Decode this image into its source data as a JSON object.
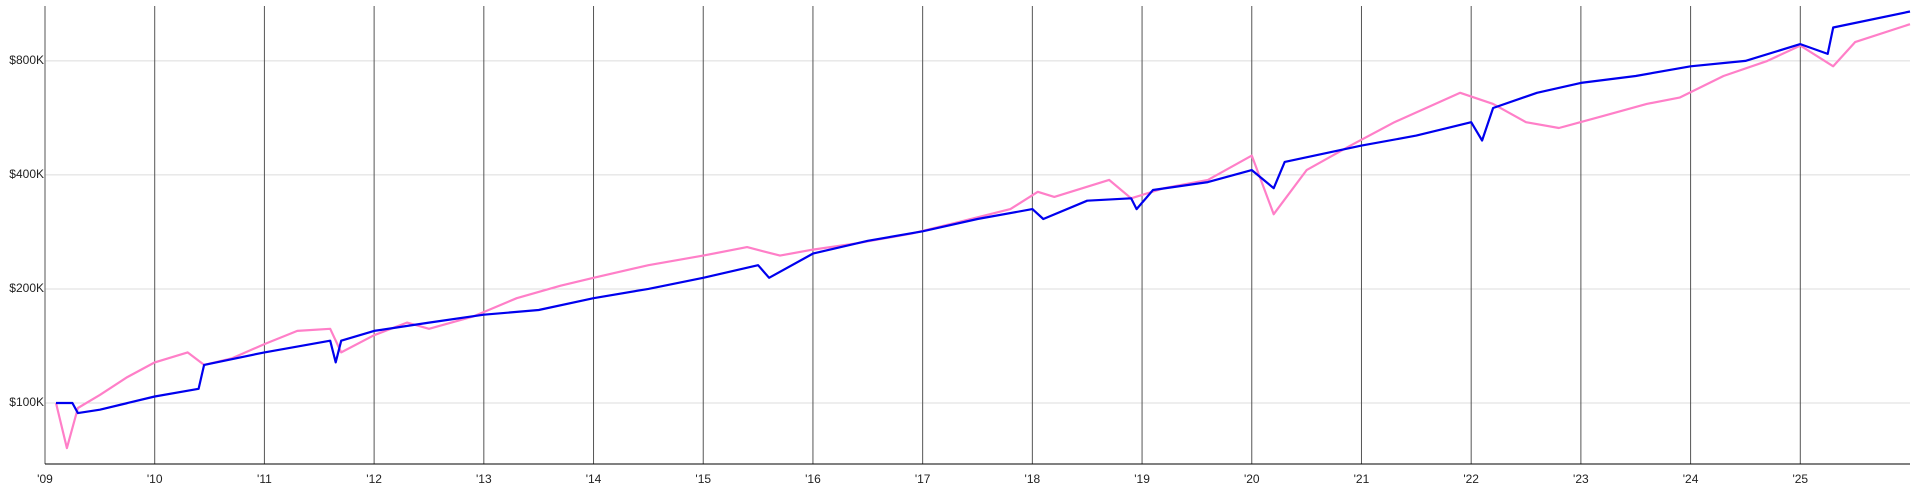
{
  "chart_data": {
    "type": "line",
    "yscale": "log",
    "xlim": [
      2009,
      2026
    ],
    "ylim": [
      69000,
      1117000
    ],
    "xticks": [
      {
        "value": 2009,
        "label": "'09"
      },
      {
        "value": 2010,
        "label": "'10"
      },
      {
        "value": 2011,
        "label": "'11"
      },
      {
        "value": 2012,
        "label": "'12"
      },
      {
        "value": 2013,
        "label": "'13"
      },
      {
        "value": 2014,
        "label": "'14"
      },
      {
        "value": 2015,
        "label": "'15"
      },
      {
        "value": 2016,
        "label": "'16"
      },
      {
        "value": 2017,
        "label": "'17"
      },
      {
        "value": 2018,
        "label": "'18"
      },
      {
        "value": 2019,
        "label": "'19"
      },
      {
        "value": 2020,
        "label": "'20"
      },
      {
        "value": 2021,
        "label": "'21"
      },
      {
        "value": 2022,
        "label": "'22"
      },
      {
        "value": 2023,
        "label": "'23"
      },
      {
        "value": 2024,
        "label": "'24"
      },
      {
        "value": 2025,
        "label": "'25"
      }
    ],
    "yticks": [
      {
        "value": 100000,
        "label": "$100K"
      },
      {
        "value": 200000,
        "label": "$200K"
      },
      {
        "value": 400000,
        "label": "$400K"
      },
      {
        "value": 800000,
        "label": "$800K"
      }
    ],
    "grid": true,
    "series": [
      {
        "color": "#ff7fc8",
        "x": [
          2009.1,
          2009.2,
          2009.3,
          2009.5,
          2009.75,
          2010.0,
          2010.3,
          2010.45,
          2010.7,
          2011.0,
          2011.3,
          2011.6,
          2011.7,
          2012.0,
          2012.3,
          2012.5,
          2012.9,
          2013.3,
          2013.7,
          2014.0,
          2014.5,
          2015.0,
          2015.4,
          2015.7,
          2016.0,
          2016.4,
          2016.9,
          2017.3,
          2017.8,
          2018.05,
          2018.2,
          2018.7,
          2018.9,
          2019.2,
          2019.6,
          2020.0,
          2020.2,
          2020.5,
          2020.9,
          2021.3,
          2021.9,
          2022.2,
          2022.5,
          2022.8,
          2023.2,
          2023.6,
          2023.9,
          2024.3,
          2024.7,
          2025.0,
          2025.3,
          2025.5,
          2026.0
        ],
        "values": [
          100000,
          76000,
          97000,
          105000,
          117000,
          128000,
          136000,
          126000,
          131000,
          143000,
          155000,
          157000,
          136000,
          151000,
          163000,
          157000,
          169000,
          189000,
          204000,
          214000,
          231000,
          245000,
          258000,
          245000,
          254000,
          264000,
          280000,
          299000,
          325000,
          361000,
          350000,
          388000,
          347000,
          369000,
          388000,
          450000,
          315000,
          412000,
          478000,
          551000,
          659000,
          616000,
          551000,
          532000,
          572000,
          616000,
          640000,
          730000,
          800000,
          878000,
          774000,
          897000,
          1000000
        ]
      },
      {
        "color": "#0000ee",
        "x": [
          2009.1,
          2009.25,
          2009.3,
          2009.5,
          2010.0,
          2010.4,
          2010.45,
          2011.0,
          2011.6,
          2011.65,
          2011.7,
          2012.0,
          2012.5,
          2013.0,
          2013.5,
          2014.0,
          2014.5,
          2015.0,
          2015.5,
          2015.6,
          2016.0,
          2016.5,
          2017.0,
          2017.5,
          2018.0,
          2018.1,
          2018.5,
          2018.9,
          2018.95,
          2019.1,
          2019.6,
          2020.0,
          2020.2,
          2020.3,
          2021.0,
          2021.5,
          2022.0,
          2022.1,
          2022.2,
          2022.6,
          2023.0,
          2023.5,
          2024.0,
          2024.5,
          2025.0,
          2025.25,
          2025.3,
          2026.0
        ],
        "values": [
          100000,
          100000,
          94000,
          96000,
          104000,
          109000,
          126000,
          136000,
          146000,
          128000,
          146000,
          155000,
          163000,
          171000,
          176000,
          189000,
          200000,
          214000,
          231000,
          214000,
          248000,
          268000,
          284000,
          306000,
          325000,
          306000,
          342000,
          347000,
          325000,
          365000,
          383000,
          412000,
          369000,
          433000,
          478000,
          508000,
          551000,
          493000,
          601000,
          659000,
          700000,
          730000,
          774000,
          800000,
          886000,
          835000,
          980000,
          1080000
        ]
      }
    ]
  }
}
